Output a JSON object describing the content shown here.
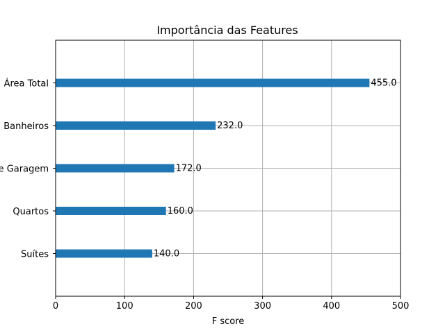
{
  "chart_data": {
    "type": "bar",
    "orientation": "horizontal",
    "title": "Importância das Features",
    "xlabel": "F score",
    "ylabel": "",
    "xlim": [
      0,
      500
    ],
    "xticks": [
      0,
      100,
      200,
      300,
      400,
      500
    ],
    "grid": true,
    "bar_color": "#1f77b4",
    "categories": [
      "Área Total",
      "Banheiros",
      "Vagas de Garagem",
      "Quartos",
      "Suítes"
    ],
    "values": [
      455.0,
      232.0,
      172.0,
      160.0,
      140.0
    ],
    "data_labels": [
      "455.0",
      "232.0",
      "172.0",
      "160.0",
      "140.0"
    ]
  }
}
